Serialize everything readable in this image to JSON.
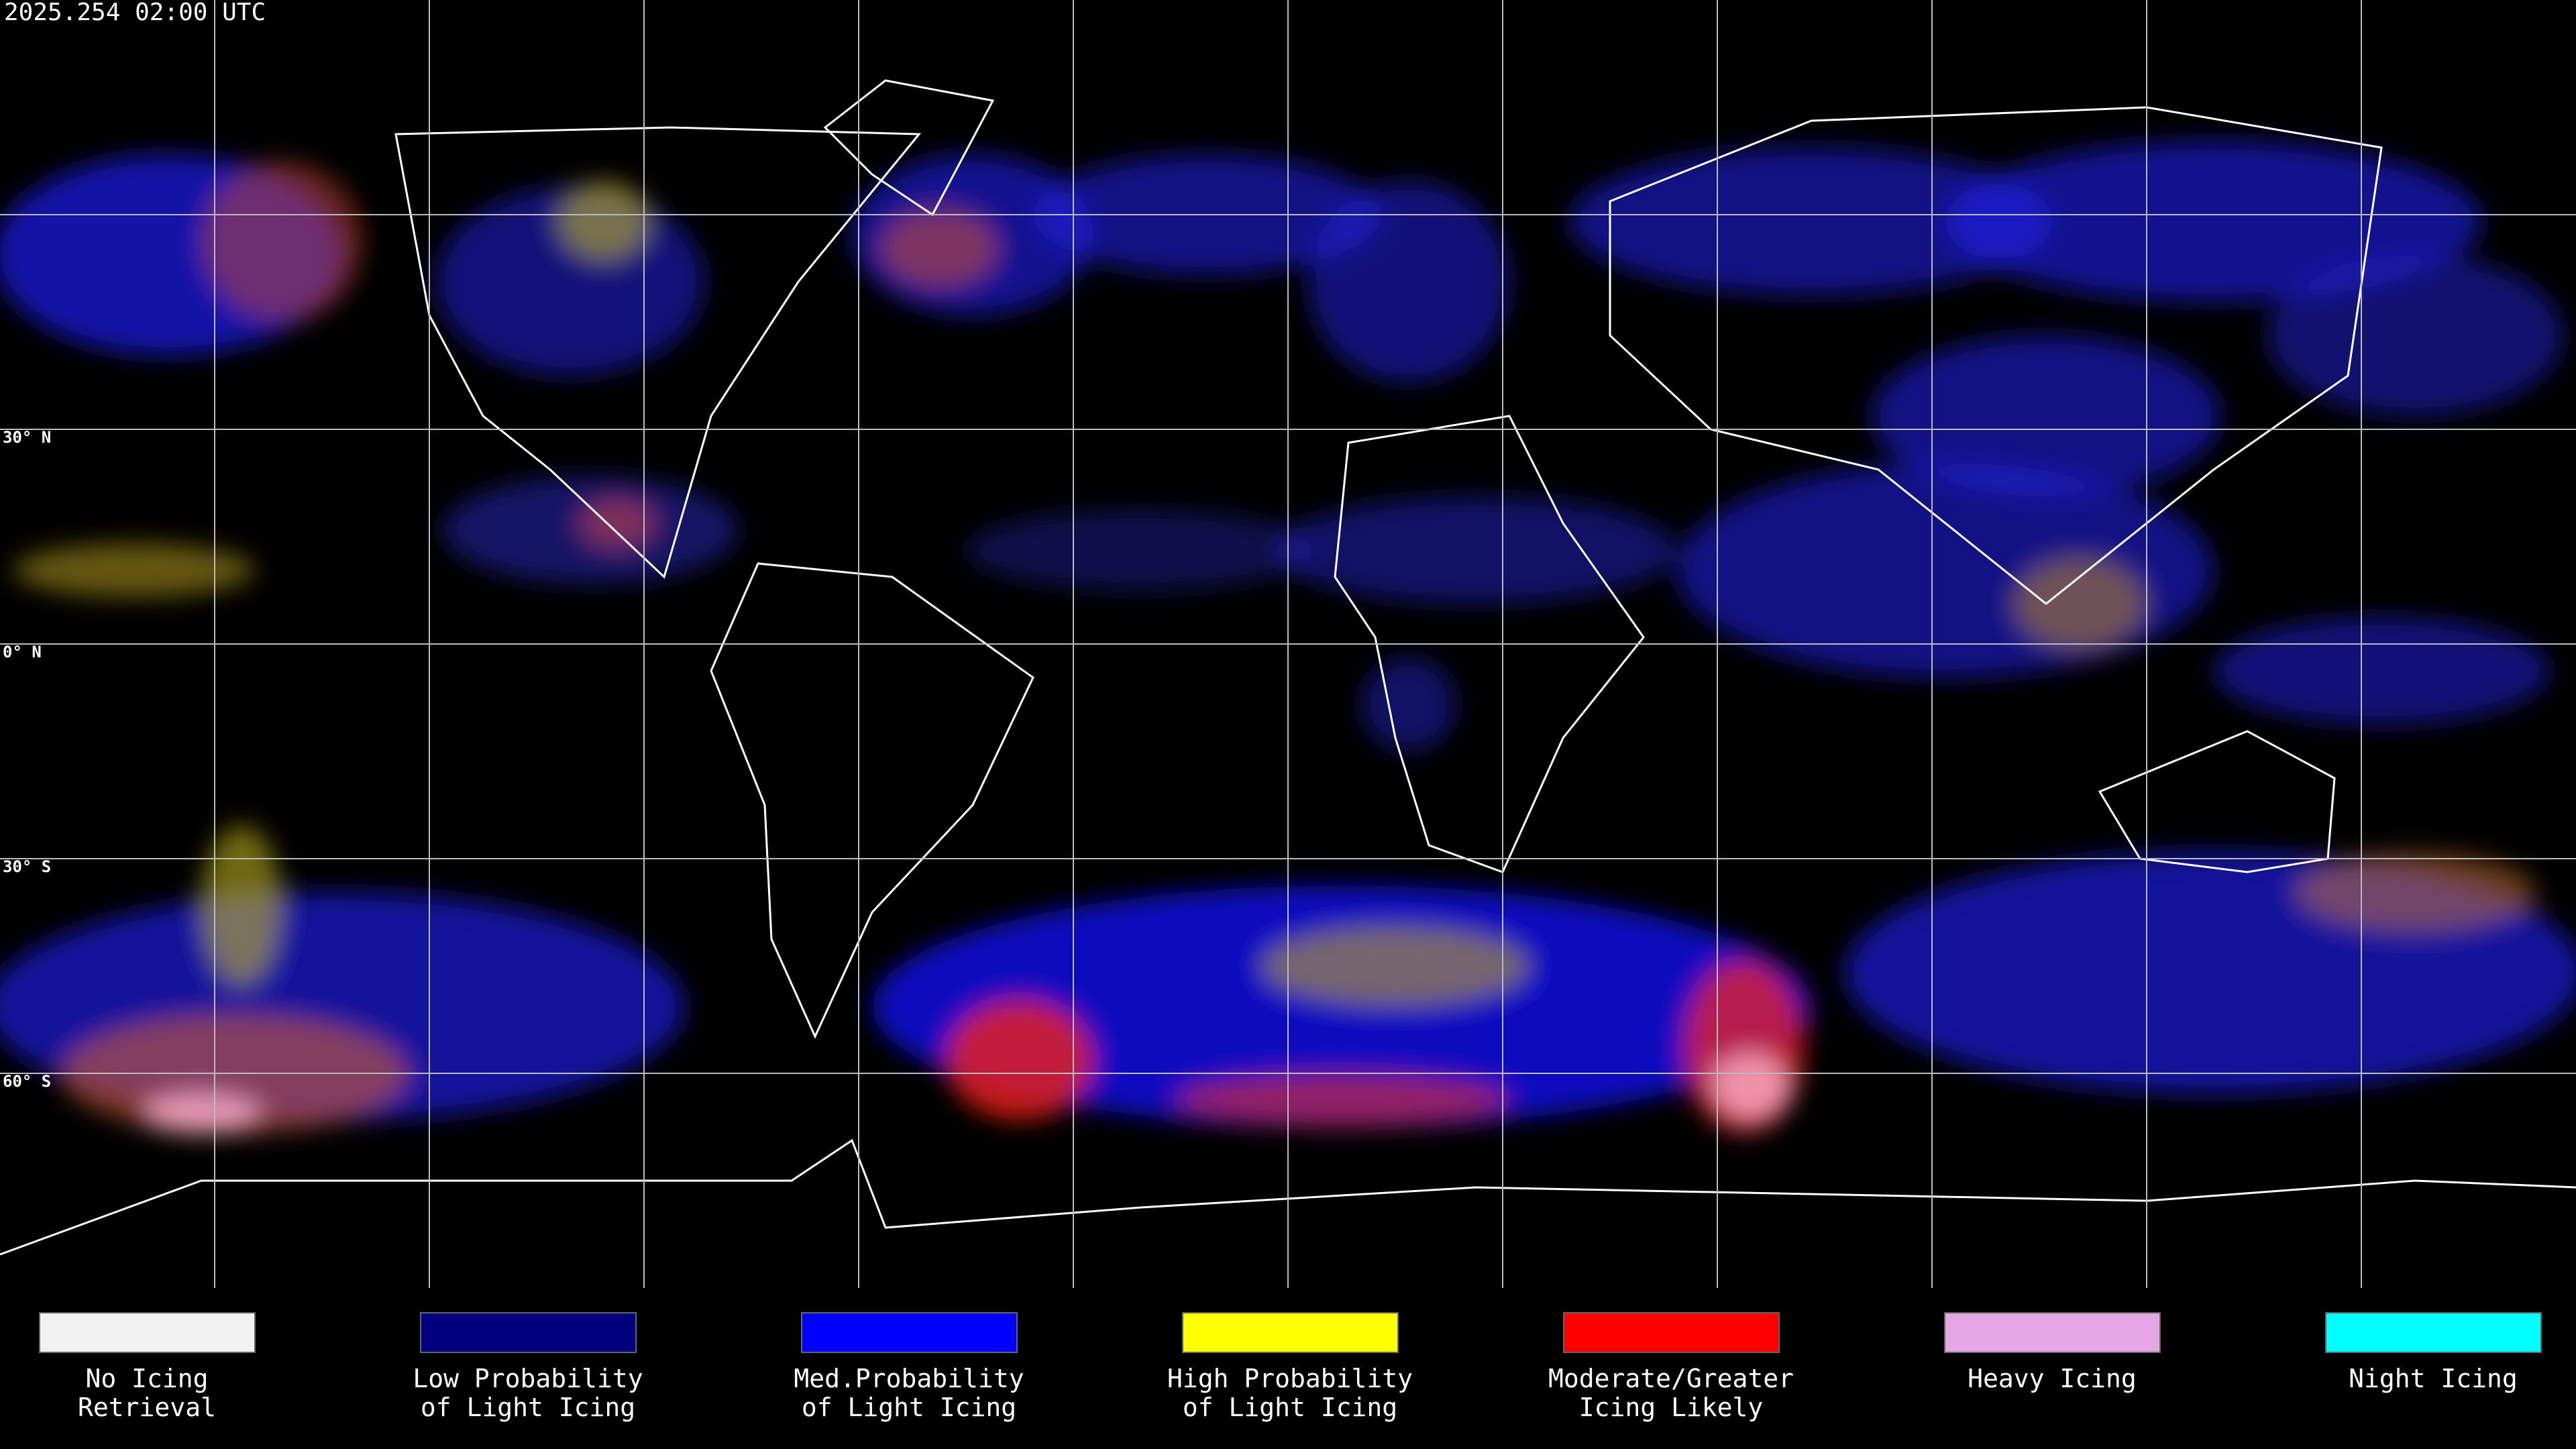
{
  "header": {
    "timestamp": "2025.254 02:00 UTC"
  },
  "map": {
    "lat_labels": [
      "30° N",
      "0° N",
      "30° S",
      "60° S"
    ]
  },
  "legend": {
    "items": [
      {
        "color": "#f2f2f2",
        "lines": [
          "No Icing",
          "Retrieval"
        ]
      },
      {
        "color": "#00007f",
        "lines": [
          "Low Probability",
          "of Light Icing"
        ]
      },
      {
        "color": "#0000ff",
        "lines": [
          "Med.Probability",
          "of Light Icing"
        ]
      },
      {
        "color": "#ffff00",
        "lines": [
          "High Probability",
          "of Light Icing"
        ]
      },
      {
        "color": "#ff0000",
        "lines": [
          "Moderate/Greater",
          "Icing Likely"
        ]
      },
      {
        "color": "#e6a6e6",
        "lines": [
          "Heavy Icing"
        ]
      },
      {
        "color": "#00ffff",
        "lines": [
          "Night Icing"
        ]
      }
    ]
  }
}
